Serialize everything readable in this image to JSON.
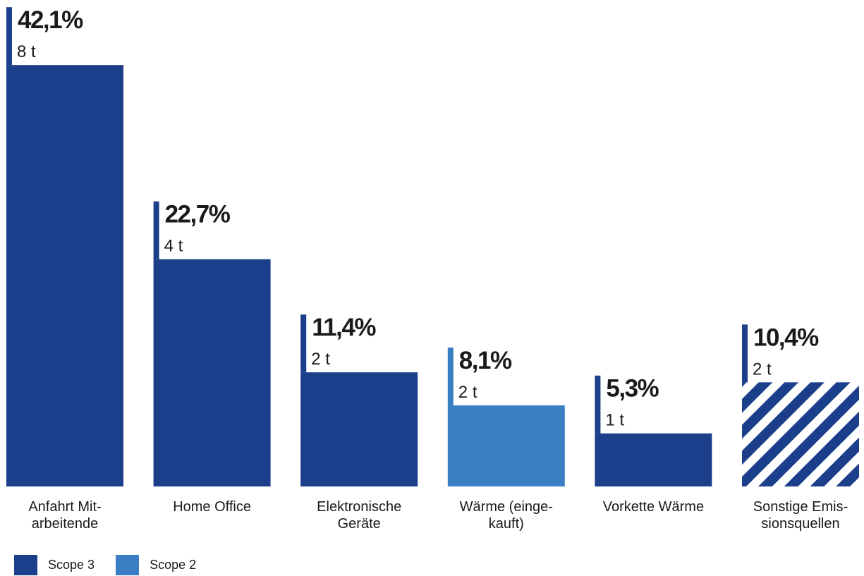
{
  "chart_data": {
    "type": "bar",
    "title": "",
    "xlabel": "",
    "ylabel": "",
    "categories": [
      [
        "Anfahrt Mit-",
        "arbeitende"
      ],
      [
        "Home Office"
      ],
      [
        "Elektronische",
        "Geräte"
      ],
      [
        "Wärme (einge-",
        "kauft)"
      ],
      [
        "Vorkette Wärme"
      ],
      [
        "Sonstige Emis-",
        "sionsquellen"
      ]
    ],
    "bars": [
      {
        "percent": 42.1,
        "percent_label": "42,1%",
        "tonnes": 8,
        "tonnes_label": "8 t",
        "scope": "Scope 3",
        "pattern": "solid"
      },
      {
        "percent": 22.7,
        "percent_label": "22,7%",
        "tonnes": 4,
        "tonnes_label": "4 t",
        "scope": "Scope 3",
        "pattern": "solid"
      },
      {
        "percent": 11.4,
        "percent_label": "11,4%",
        "tonnes": 2,
        "tonnes_label": "2 t",
        "scope": "Scope 3",
        "pattern": "solid"
      },
      {
        "percent": 8.1,
        "percent_label": "8,1%",
        "tonnes": 2,
        "tonnes_label": "2 t",
        "scope": "Scope 2",
        "pattern": "solid"
      },
      {
        "percent": 5.3,
        "percent_label": "5,3%",
        "tonnes": 1,
        "tonnes_label": "1 t",
        "scope": "Scope 3",
        "pattern": "solid"
      },
      {
        "percent": 10.4,
        "percent_label": "10,4%",
        "tonnes": 2,
        "tonnes_label": "2 t",
        "scope": "Scope 3",
        "pattern": "striped"
      }
    ],
    "legend": [
      {
        "name": "Scope 3",
        "color": "#1b3f8a"
      },
      {
        "name": "Scope 2",
        "color": "#3a7fc3"
      }
    ],
    "legend_position": "bottom-left",
    "grid": false
  },
  "colors": {
    "scope3": "#1b3f8a",
    "scope2": "#3a7fc3",
    "text": "#1a1a1a"
  }
}
